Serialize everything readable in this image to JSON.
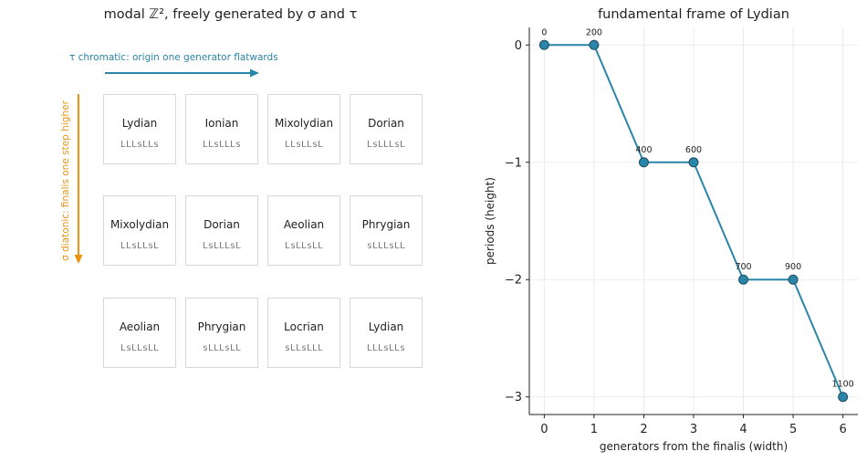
{
  "left_panel": {
    "title": "modal ℤ², freely generated by σ and τ",
    "tau_label": "τ  chromatic: origin one generator flatwards",
    "sigma_label": "σ  diatonic: finalis one step higher",
    "tau_color": "#2a85a8",
    "sigma_color": "#e89412",
    "grid": [
      [
        {
          "name": "Lydian",
          "pattern": "LLLsLLs"
        },
        {
          "name": "Ionian",
          "pattern": "LLsLLLs"
        },
        {
          "name": "Mixolydian",
          "pattern": "LLsLLsL"
        },
        {
          "name": "Dorian",
          "pattern": "LsLLLsL"
        }
      ],
      [
        {
          "name": "Mixolydian",
          "pattern": "LLsLLsL"
        },
        {
          "name": "Dorian",
          "pattern": "LsLLLsL"
        },
        {
          "name": "Aeolian",
          "pattern": "LsLLsLL"
        },
        {
          "name": "Phrygian",
          "pattern": "sLLLsLL"
        }
      ],
      [
        {
          "name": "Aeolian",
          "pattern": "LsLLsLL"
        },
        {
          "name": "Phrygian",
          "pattern": "sLLLsLL"
        },
        {
          "name": "Locrian",
          "pattern": "sLLsLLL"
        },
        {
          "name": "Lydian",
          "pattern": "LLLsLLs"
        }
      ]
    ]
  },
  "chart_data": {
    "type": "line",
    "title": "fundamental frame of Lydian",
    "xlabel": "generators from the finalis (width)",
    "ylabel": "periods (height)",
    "x": [
      0,
      1,
      2,
      3,
      4,
      5,
      6
    ],
    "y": [
      0,
      0,
      -1,
      -1,
      -2,
      -2,
      -3
    ],
    "point_labels": [
      "0",
      "200",
      "400",
      "600",
      "700",
      "900",
      "1100"
    ],
    "xlim": [
      -0.3,
      6.3
    ],
    "ylim": [
      -3.15,
      0.15
    ],
    "xticks": [
      0,
      1,
      2,
      3,
      4,
      5,
      6
    ],
    "yticks": [
      0,
      -1,
      -2,
      -3
    ],
    "ytick_labels": [
      "0",
      "−1",
      "−2",
      "−3"
    ],
    "grid": true,
    "line_color": "#2a85a8",
    "marker_edge_color": "#1d4f63"
  }
}
